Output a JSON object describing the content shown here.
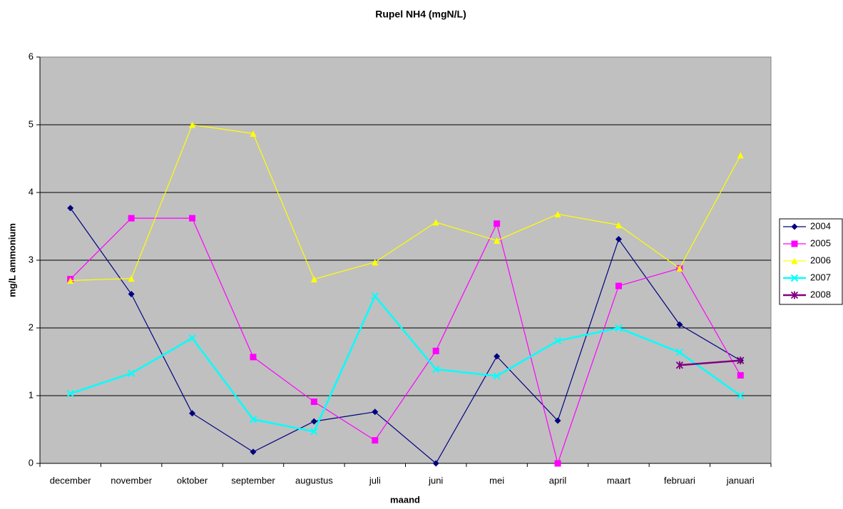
{
  "chart_data": {
    "type": "line",
    "title": "Rupel NH4 (mgN/L)",
    "x_label": "maand",
    "y_label": "mg/L ammonium",
    "categories": [
      "december",
      "november",
      "oktober",
      "september",
      "augustus",
      "juli",
      "juni",
      "mei",
      "april",
      "maart",
      "februari",
      "januari"
    ],
    "series": [
      {
        "name": "2004",
        "color": "#000080",
        "marker": "diamond",
        "values": [
          3.77,
          2.5,
          0.74,
          0.17,
          0.62,
          0.76,
          0,
          1.58,
          0.63,
          3.31,
          2.05,
          1.52
        ]
      },
      {
        "name": "2005",
        "color": "#ff00ff",
        "marker": "square",
        "values": [
          2.72,
          3.62,
          3.62,
          1.57,
          0.91,
          0.34,
          1.66,
          3.54,
          0,
          2.62,
          2.88,
          1.3
        ]
      },
      {
        "name": "2006",
        "color": "#ffff00",
        "marker": "triangle",
        "values": [
          2.7,
          2.73,
          5.0,
          4.87,
          2.72,
          2.97,
          3.56,
          3.29,
          3.68,
          3.52,
          2.88,
          4.55
        ]
      },
      {
        "name": "2007",
        "color": "#00ffff",
        "marker": "x",
        "values": [
          1.03,
          1.33,
          1.85,
          0.65,
          0.47,
          2.47,
          1.39,
          1.29,
          1.81,
          2.0,
          1.64,
          1.0
        ]
      },
      {
        "name": "2008",
        "color": "#800080",
        "marker": "star",
        "values": [
          null,
          null,
          null,
          null,
          null,
          null,
          null,
          null,
          null,
          null,
          1.45,
          1.52
        ]
      }
    ],
    "ylim": [
      0,
      6
    ],
    "yticks": [
      0,
      1,
      2,
      3,
      4,
      5,
      6
    ],
    "grid": true,
    "legend": "right"
  }
}
